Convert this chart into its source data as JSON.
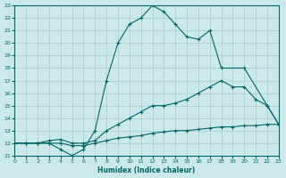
{
  "xlabel": "Humidex (Indice chaleur)",
  "xlim": [
    0,
    23
  ],
  "ylim": [
    11,
    23
  ],
  "yticks": [
    11,
    12,
    13,
    14,
    15,
    16,
    17,
    18,
    19,
    20,
    21,
    22,
    23
  ],
  "xticks": [
    0,
    1,
    2,
    3,
    4,
    5,
    6,
    7,
    8,
    9,
    10,
    11,
    12,
    13,
    14,
    15,
    16,
    17,
    18,
    19,
    20,
    21,
    22,
    23
  ],
  "bg_color": "#cce9e9",
  "line_color": "#006666",
  "grid_color": "#b0d0d0",
  "curve1_x": [
    0,
    1,
    2,
    3,
    4,
    5,
    6,
    7,
    8,
    9,
    10,
    11,
    12,
    13,
    14,
    15,
    16,
    17,
    18,
    20,
    22,
    23
  ],
  "curve1_y": [
    12,
    12,
    12,
    12,
    11.5,
    11,
    11.5,
    13,
    17,
    20,
    21.5,
    22,
    23,
    22.5,
    21.5,
    20.5,
    20.3,
    21,
    18,
    18,
    15,
    13.5
  ],
  "curve2_x": [
    0,
    1,
    2,
    3,
    4,
    5,
    6,
    7,
    8,
    9,
    10,
    11,
    12,
    13,
    14,
    15,
    16,
    17,
    18,
    19,
    20,
    21,
    22,
    23
  ],
  "curve2_y": [
    12,
    12,
    12,
    12.2,
    12.3,
    12,
    12,
    12.2,
    13,
    13.5,
    14,
    14.5,
    15,
    15,
    15.2,
    15.5,
    16,
    16.5,
    17,
    16.5,
    16.5,
    15.5,
    15,
    13.5
  ],
  "curve3_x": [
    0,
    1,
    2,
    3,
    4,
    5,
    6,
    7,
    8,
    9,
    10,
    11,
    12,
    13,
    14,
    15,
    16,
    17,
    18,
    19,
    20,
    21,
    22,
    23
  ],
  "curve3_y": [
    12,
    12,
    12,
    12,
    12,
    11.8,
    11.8,
    12,
    12.2,
    12.4,
    12.5,
    12.6,
    12.8,
    12.9,
    13,
    13,
    13.1,
    13.2,
    13.3,
    13.3,
    13.4,
    13.4,
    13.5,
    13.5
  ]
}
